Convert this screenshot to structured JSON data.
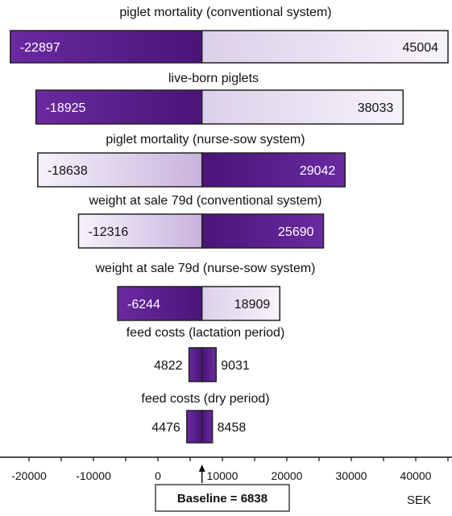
{
  "chart_data": {
    "type": "bar",
    "subtype": "tornado",
    "baseline": 6838,
    "baseline_label": "Baseline = 6838",
    "unit": "SEK",
    "xlim": [
      -24000,
      45000
    ],
    "xticks": [
      -20000,
      -10000,
      0,
      10000,
      20000,
      30000,
      40000
    ],
    "tick_labels": [
      "-20000",
      "-10000",
      "0",
      "10000",
      "20000",
      "30000",
      "40000"
    ],
    "colors": {
      "dark": "#5b1a8c",
      "light": "#e8def2",
      "border": "#222222"
    },
    "categories": [
      "piglet mortality (conventional system)",
      "live-born piglets",
      "piglet mortality (nurse-sow system)",
      "weight at sale 79d (conventional system)",
      "weight at sale 79d (nurse-sow system)",
      "feed costs (lactation period)",
      "feed costs (dry period)"
    ],
    "bars": [
      {
        "low": -22897,
        "high": 45004,
        "low_label": "-22897",
        "high_label": "45004",
        "dark_side": "left"
      },
      {
        "low": -18925,
        "high": 38033,
        "low_label": "-18925",
        "high_label": "38033",
        "dark_side": "left"
      },
      {
        "low": -18638,
        "high": 29042,
        "low_label": "-18638",
        "high_label": "29042",
        "dark_side": "right"
      },
      {
        "low": -12316,
        "high": 25690,
        "low_label": "-12316",
        "high_label": "25690",
        "dark_side": "right"
      },
      {
        "low": -6244,
        "high": 18909,
        "low_label": "-6244",
        "high_label": "18909",
        "dark_side": "left"
      },
      {
        "low": 4822,
        "high": 9031,
        "low_label": "4822",
        "high_label": "9031",
        "dark_side": "both"
      },
      {
        "low": 4476,
        "high": 8458,
        "low_label": "4476",
        "high_label": "8458",
        "dark_side": "both"
      }
    ]
  }
}
